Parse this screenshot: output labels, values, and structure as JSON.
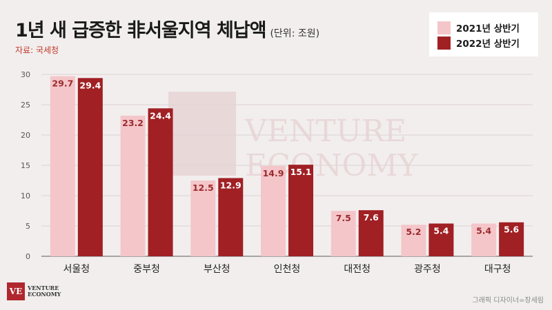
{
  "header": {
    "title": "1년 새 급증한 非서울지역 체납액",
    "unit": "(단위: 조원)",
    "source": "자료: 국세청"
  },
  "legend": {
    "items": [
      "2021년 상반기",
      "2022년 상반기"
    ]
  },
  "colors": {
    "series1": "#f4c6c9",
    "series2": "#a02024",
    "background": "#f2eeee",
    "label1": "#9b2a2e",
    "label2": "#ffffff"
  },
  "watermark": {
    "line1": "VENTURE",
    "line2": "ECONOMY"
  },
  "logo": {
    "mark": "VE",
    "line1": "VENTURE",
    "line2": "ECONOMY"
  },
  "credit": "그래픽 디자이너=장세림",
  "chart_data": {
    "type": "bar",
    "categories": [
      "서울청",
      "중부청",
      "부산청",
      "인천청",
      "대전청",
      "광주청",
      "대구청"
    ],
    "series": [
      {
        "name": "2021년 상반기",
        "values": [
          29.7,
          23.2,
          12.5,
          14.9,
          7.5,
          5.2,
          5.4
        ]
      },
      {
        "name": "2022년 상반기",
        "values": [
          29.4,
          24.4,
          12.9,
          15.1,
          7.6,
          5.4,
          5.6
        ]
      }
    ],
    "title": "1년 새 급증한 非서울지역 체납액",
    "xlabel": "",
    "ylabel": "",
    "ylim": [
      0,
      30
    ],
    "yticks": [
      0,
      5,
      10,
      15,
      20,
      25,
      30
    ],
    "grid": true,
    "legend_position": "top-right"
  }
}
